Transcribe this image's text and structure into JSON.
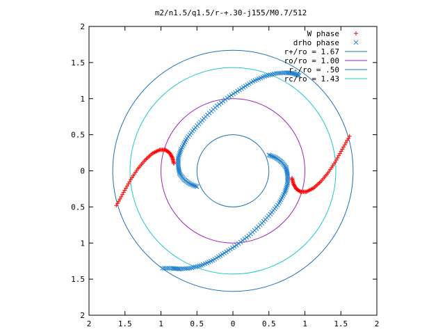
{
  "chart_data": {
    "type": "scatter",
    "title": "m2/n1.5/q1.5/r-+.30-j155/M0.7/512",
    "xlabel": "",
    "ylabel": "",
    "xlim": [
      -2,
      2
    ],
    "ylim": [
      -2,
      2
    ],
    "xticks": [
      {
        "value": -2,
        "label": "2"
      },
      {
        "value": -1.5,
        "label": "1.5"
      },
      {
        "value": -1,
        "label": "1"
      },
      {
        "value": -0.5,
        "label": "0.5"
      },
      {
        "value": 0,
        "label": "0"
      },
      {
        "value": 0.5,
        "label": "0.5"
      },
      {
        "value": 1,
        "label": "1"
      },
      {
        "value": 1.5,
        "label": "1.5"
      },
      {
        "value": 2,
        "label": "2"
      }
    ],
    "yticks": [
      {
        "value": 2,
        "label": "2"
      },
      {
        "value": 1.5,
        "label": "1.5"
      },
      {
        "value": 1,
        "label": "1"
      },
      {
        "value": 0.5,
        "label": "0.5"
      },
      {
        "value": 0,
        "label": "0"
      },
      {
        "value": -0.5,
        "label": "0.5"
      },
      {
        "value": -1,
        "label": "1"
      },
      {
        "value": -1.5,
        "label": "1.5"
      },
      {
        "value": -2,
        "label": "2"
      }
    ],
    "grid": false,
    "legend_position": "top-right",
    "series": [
      {
        "name": "W phase",
        "kind": "points",
        "marker": "plus",
        "color": "#ff0000",
        "points": [
          [
            -1.62,
            -0.48
          ],
          [
            -1.52,
            -0.3
          ],
          [
            -1.42,
            -0.12
          ],
          [
            -1.32,
            0.03
          ],
          [
            -1.22,
            0.15
          ],
          [
            -1.12,
            0.24
          ],
          [
            -1.02,
            0.29
          ],
          [
            -0.94,
            0.29
          ],
          [
            -0.88,
            0.25
          ],
          [
            -0.84,
            0.18
          ],
          [
            -0.82,
            0.1
          ],
          [
            1.62,
            0.48
          ],
          [
            1.52,
            0.3
          ],
          [
            1.42,
            0.12
          ],
          [
            1.32,
            -0.03
          ],
          [
            1.22,
            -0.15
          ],
          [
            1.12,
            -0.24
          ],
          [
            1.02,
            -0.29
          ],
          [
            0.94,
            -0.29
          ],
          [
            0.88,
            -0.25
          ],
          [
            0.84,
            -0.18
          ],
          [
            0.82,
            -0.1
          ]
        ]
      },
      {
        "name": "drho phase",
        "kind": "points",
        "marker": "cross",
        "color": "#2080d0",
        "points": [
          [
            -0.5,
            -0.22
          ],
          [
            -0.6,
            -0.18
          ],
          [
            -0.68,
            -0.12
          ],
          [
            -0.74,
            -0.04
          ],
          [
            -0.76,
            0.06
          ],
          [
            -0.76,
            0.18
          ],
          [
            -0.72,
            0.3
          ],
          [
            -0.64,
            0.45
          ],
          [
            -0.52,
            0.6
          ],
          [
            -0.38,
            0.75
          ],
          [
            -0.22,
            0.9
          ],
          [
            -0.05,
            1.03
          ],
          [
            0.12,
            1.14
          ],
          [
            0.28,
            1.24
          ],
          [
            0.44,
            1.31
          ],
          [
            0.6,
            1.35
          ],
          [
            0.74,
            1.36
          ],
          [
            0.84,
            1.35
          ],
          [
            0.92,
            1.32
          ],
          [
            0.5,
            0.22
          ],
          [
            0.6,
            0.18
          ],
          [
            0.68,
            0.12
          ],
          [
            0.74,
            0.04
          ],
          [
            0.76,
            -0.06
          ],
          [
            0.76,
            -0.18
          ],
          [
            0.72,
            -0.3
          ],
          [
            0.64,
            -0.45
          ],
          [
            0.52,
            -0.6
          ],
          [
            0.38,
            -0.75
          ],
          [
            0.22,
            -0.9
          ],
          [
            0.05,
            -1.03
          ],
          [
            -0.12,
            -1.14
          ],
          [
            -0.28,
            -1.24
          ],
          [
            -0.44,
            -1.31
          ],
          [
            -0.6,
            -1.35
          ],
          [
            -0.74,
            -1.36
          ],
          [
            -0.84,
            -1.35
          ],
          [
            -0.98,
            -1.35
          ]
        ]
      },
      {
        "name": "r+/ro = 1.67",
        "kind": "circle",
        "radius": 1.67,
        "color": "#1f6fc0"
      },
      {
        "name": "ro/ro = 1.00",
        "kind": "circle",
        "radius": 1.0,
        "color": "#a020c0"
      },
      {
        "name": "r-/ro = .50",
        "kind": "circle",
        "radius": 0.5,
        "color": "#1f6fc0"
      },
      {
        "name": "rc/ro = 1.43",
        "kind": "circle",
        "radius": 1.43,
        "color": "#20c8c8"
      }
    ]
  }
}
